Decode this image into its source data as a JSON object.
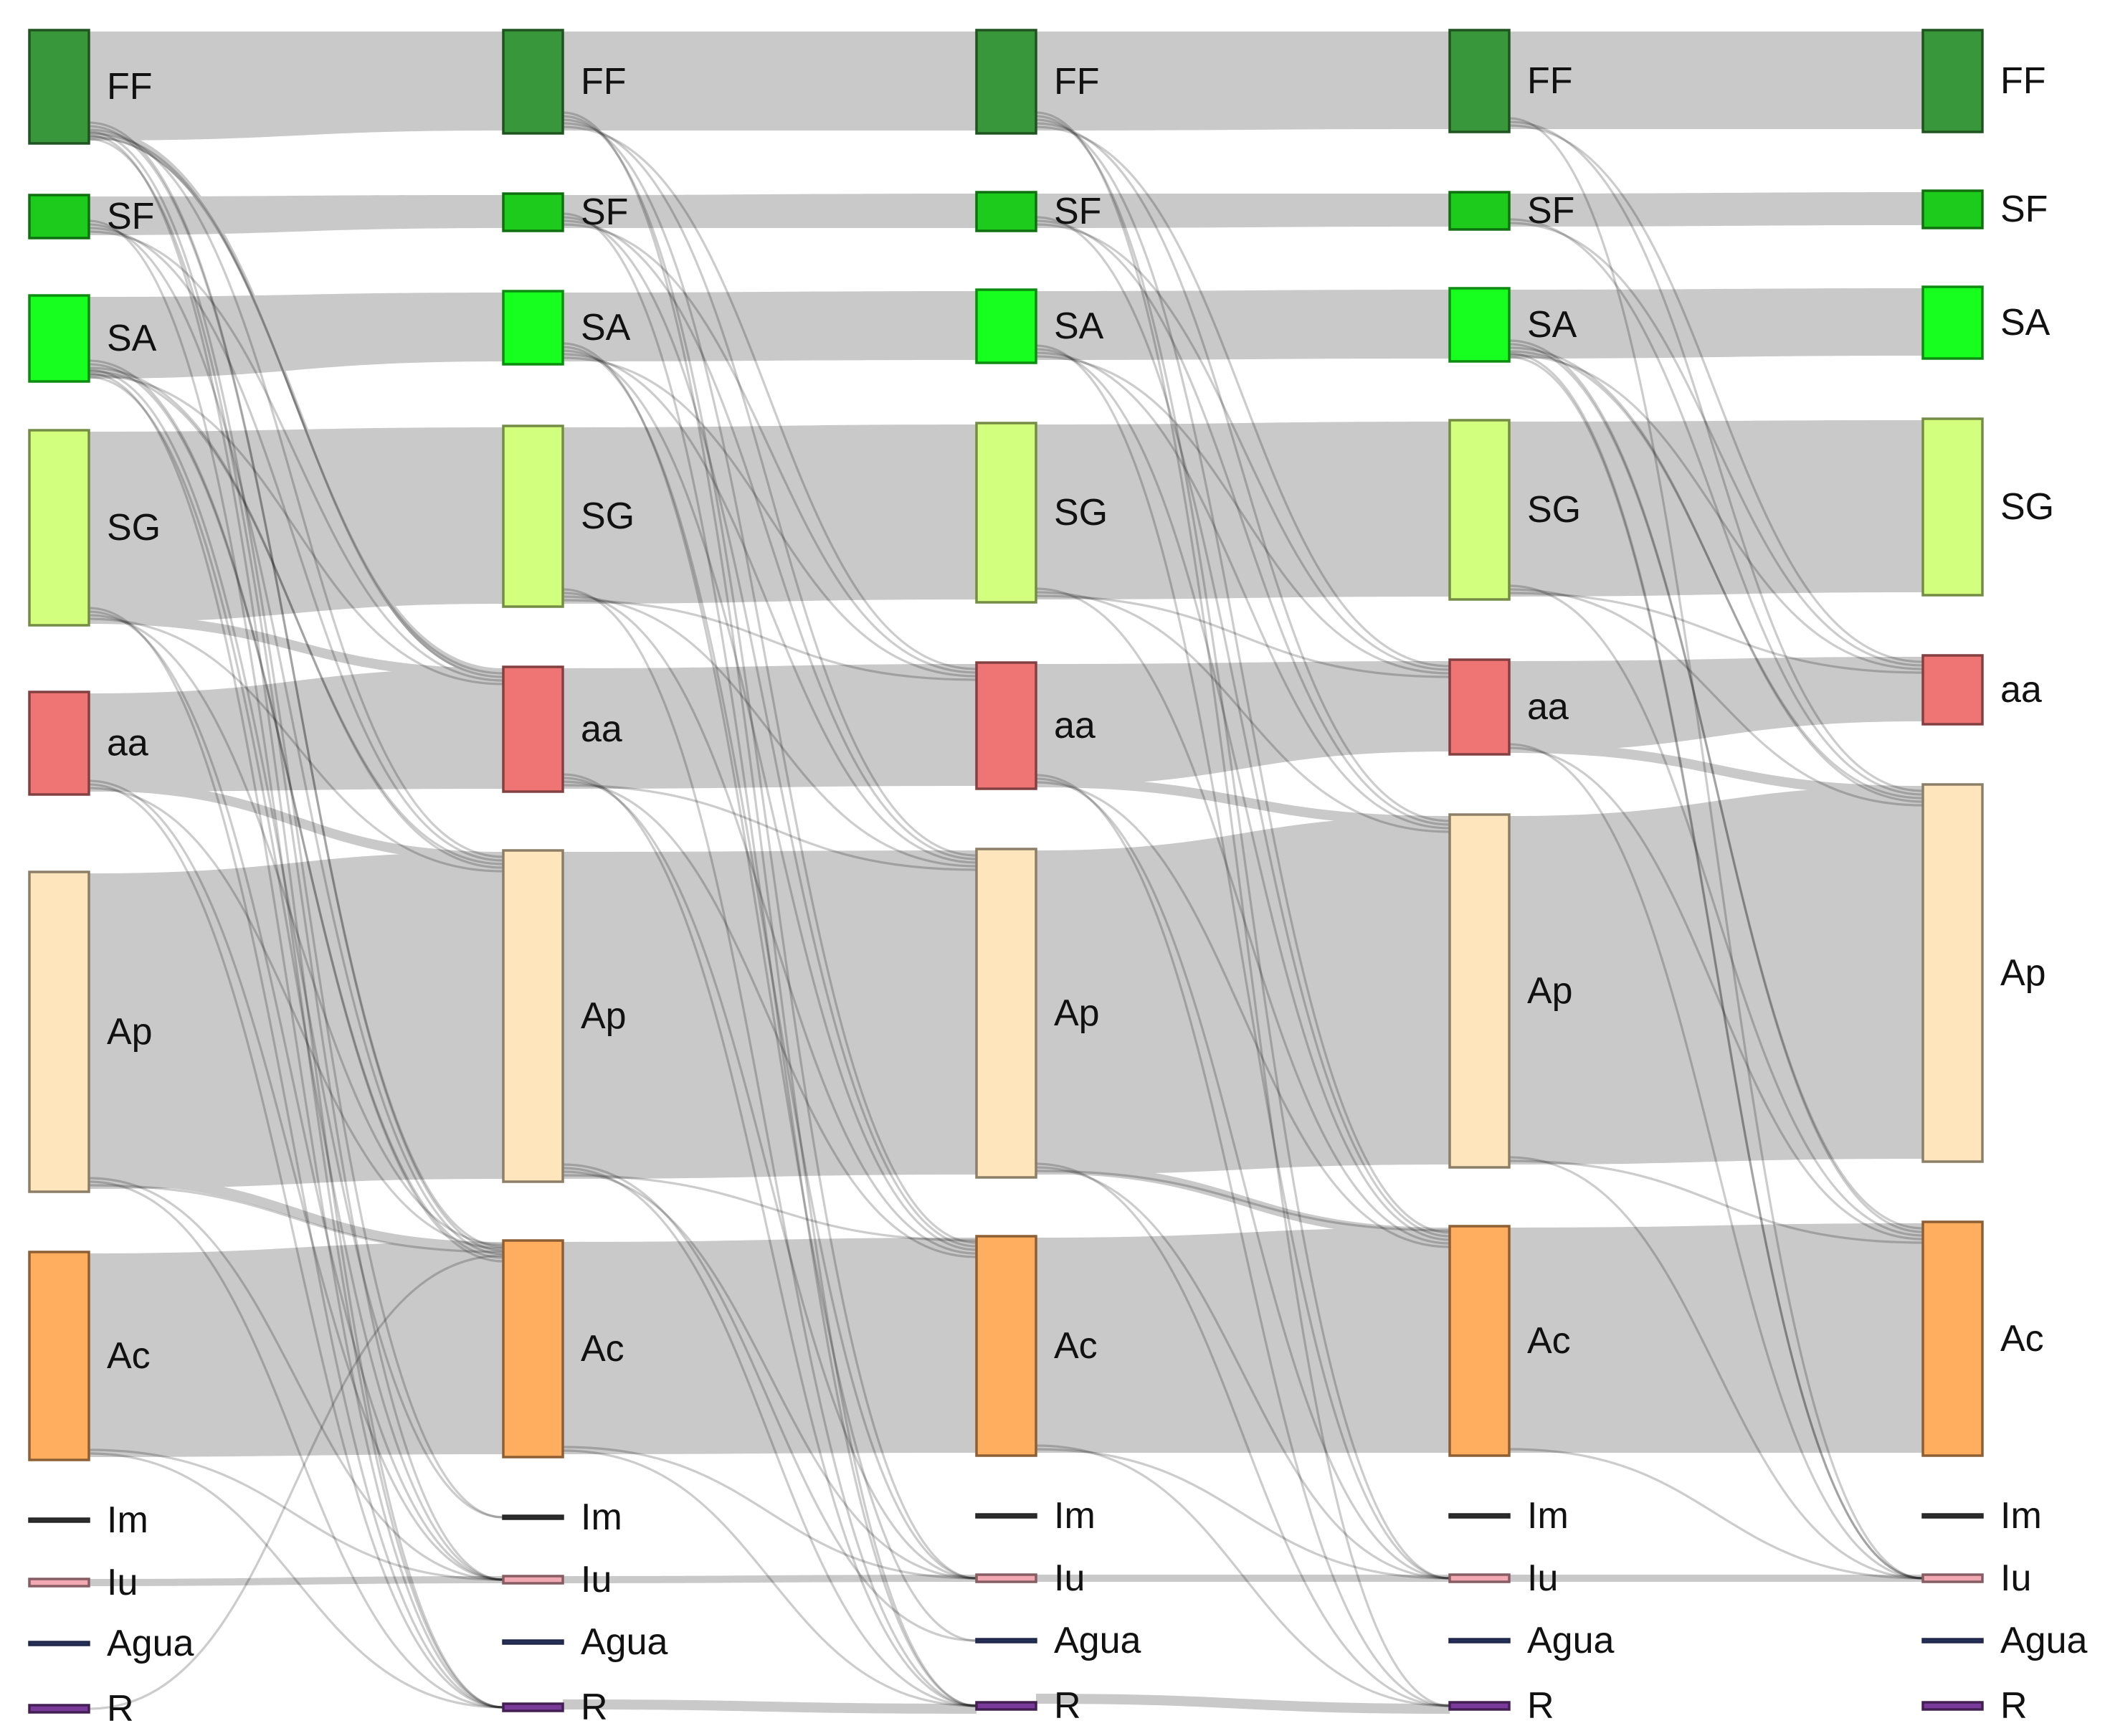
{
  "diagram": {
    "type": "sankey",
    "columns": 5,
    "categories": [
      {
        "id": "FF",
        "label": "FF",
        "color": "#38973a"
      },
      {
        "id": "SF",
        "label": "SF",
        "color": "#1dcb1d"
      },
      {
        "id": "SA",
        "label": "SA",
        "color": "#17ff1f"
      },
      {
        "id": "SG",
        "label": "SG",
        "color": "#d2ff7d"
      },
      {
        "id": "aa",
        "label": "aa",
        "color": "#ef7575"
      },
      {
        "id": "Ap",
        "label": "Ap",
        "color": "#fee5bc"
      },
      {
        "id": "Ac",
        "label": "Ac",
        "color": "#ffad5f"
      },
      {
        "id": "Im",
        "label": "Im",
        "color": "#474747"
      },
      {
        "id": "Iu",
        "label": "Iu",
        "color": "#f3a9b4"
      },
      {
        "id": "Agua",
        "label": "Agua",
        "color": "#3b4a8a"
      },
      {
        "id": "R",
        "label": "R",
        "color": "#7a3a99"
      }
    ],
    "band_color": "#c9c9c9",
    "thin_link_color": "#000000",
    "flows": [
      {
        "from": 0,
        "to": 1,
        "major": [
          "FF",
          "SF",
          "SA",
          "SG",
          "aa",
          "Ap",
          "Ac",
          "Iu"
        ],
        "minor": [
          [
            "SG",
            "aa"
          ],
          [
            "aa",
            "Ap"
          ],
          [
            "FF",
            "aa"
          ],
          [
            "Ap",
            "Ac"
          ]
        ]
      },
      {
        "from": 1,
        "to": 2,
        "major": [
          "FF",
          "SF",
          "SA",
          "SG",
          "aa",
          "Ap",
          "Ac",
          "Iu"
        ],
        "minor": [
          [
            "R",
            "R"
          ]
        ]
      },
      {
        "from": 2,
        "to": 3,
        "major": [
          "FF",
          "SF",
          "SA",
          "SG",
          "aa",
          "Ap",
          "Ac",
          "Iu"
        ],
        "minor": [
          [
            "aa",
            "Ap"
          ],
          [
            "Ap",
            "Ac"
          ],
          [
            "R",
            "R"
          ]
        ]
      },
      {
        "from": 3,
        "to": 4,
        "major": [
          "FF",
          "SF",
          "SA",
          "SG",
          "aa",
          "Ap",
          "Ac",
          "Iu"
        ],
        "minor": [
          [
            "aa",
            "Ap"
          ]
        ]
      }
    ],
    "thin_links": [
      [
        0,
        "FF",
        "aa"
      ],
      [
        0,
        "FF",
        "aa"
      ],
      [
        0,
        "FF",
        "Ap"
      ],
      [
        0,
        "FF",
        "Ac"
      ],
      [
        0,
        "FF",
        "Ac"
      ],
      [
        0,
        "FF",
        "Iu"
      ],
      [
        0,
        "FF",
        "R"
      ],
      [
        0,
        "FF",
        "Im"
      ],
      [
        0,
        "SF",
        "aa"
      ],
      [
        0,
        "SF",
        "Ap"
      ],
      [
        0,
        "SF",
        "Ac"
      ],
      [
        0,
        "SF",
        "R"
      ],
      [
        0,
        "SA",
        "aa"
      ],
      [
        0,
        "SA",
        "Ap"
      ],
      [
        0,
        "SA",
        "Ap"
      ],
      [
        0,
        "SA",
        "Ac"
      ],
      [
        0,
        "SA",
        "Ac"
      ],
      [
        0,
        "SA",
        "Iu"
      ],
      [
        0,
        "SA",
        "R"
      ],
      [
        0,
        "SA",
        "Im"
      ],
      [
        0,
        "SG",
        "Ap"
      ],
      [
        0,
        "SG",
        "Ac"
      ],
      [
        0,
        "SG",
        "Iu"
      ],
      [
        0,
        "SG",
        "R"
      ],
      [
        0,
        "aa",
        "Ac"
      ],
      [
        0,
        "aa",
        "R"
      ],
      [
        0,
        "aa",
        "Iu"
      ],
      [
        0,
        "Ap",
        "Ac"
      ],
      [
        0,
        "Ap",
        "R"
      ],
      [
        0,
        "Ap",
        "Iu"
      ],
      [
        0,
        "Ac",
        "R"
      ],
      [
        0,
        "Ac",
        "Iu"
      ],
      [
        0,
        "R",
        "Ac"
      ],
      [
        1,
        "FF",
        "aa"
      ],
      [
        1,
        "FF",
        "Ap"
      ],
      [
        1,
        "FF",
        "Ac"
      ],
      [
        1,
        "FF",
        "Iu"
      ],
      [
        1,
        "FF",
        "R"
      ],
      [
        1,
        "SF",
        "aa"
      ],
      [
        1,
        "SF",
        "Ap"
      ],
      [
        1,
        "SF",
        "Ac"
      ],
      [
        1,
        "SF",
        "R"
      ],
      [
        1,
        "SA",
        "aa"
      ],
      [
        1,
        "SA",
        "Ap"
      ],
      [
        1,
        "SA",
        "Ac"
      ],
      [
        1,
        "SA",
        "Iu"
      ],
      [
        1,
        "SA",
        "Agua"
      ],
      [
        1,
        "SG",
        "aa"
      ],
      [
        1,
        "SG",
        "Ap"
      ],
      [
        1,
        "SG",
        "Ac"
      ],
      [
        1,
        "SG",
        "R"
      ],
      [
        1,
        "aa",
        "Ap"
      ],
      [
        1,
        "aa",
        "Ac"
      ],
      [
        1,
        "aa",
        "Iu"
      ],
      [
        1,
        "aa",
        "R"
      ],
      [
        1,
        "Ap",
        "Ac"
      ],
      [
        1,
        "Ap",
        "Iu"
      ],
      [
        1,
        "Ap",
        "R"
      ],
      [
        1,
        "Ap",
        "Agua"
      ],
      [
        1,
        "Ac",
        "R"
      ],
      [
        1,
        "Ac",
        "Iu"
      ],
      [
        2,
        "FF",
        "aa"
      ],
      [
        2,
        "FF",
        "Ap"
      ],
      [
        2,
        "FF",
        "Ac"
      ],
      [
        2,
        "FF",
        "Iu"
      ],
      [
        2,
        "FF",
        "R"
      ],
      [
        2,
        "SF",
        "aa"
      ],
      [
        2,
        "SF",
        "Ap"
      ],
      [
        2,
        "SF",
        "Ac"
      ],
      [
        2,
        "SA",
        "aa"
      ],
      [
        2,
        "SA",
        "Ap"
      ],
      [
        2,
        "SA",
        "Ac"
      ],
      [
        2,
        "SA",
        "Iu"
      ],
      [
        2,
        "SG",
        "aa"
      ],
      [
        2,
        "SG",
        "Ap"
      ],
      [
        2,
        "SG",
        "Ac"
      ],
      [
        2,
        "aa",
        "Ac"
      ],
      [
        2,
        "aa",
        "Iu"
      ],
      [
        2,
        "aa",
        "R"
      ],
      [
        2,
        "Ap",
        "Ac"
      ],
      [
        2,
        "Ap",
        "Iu"
      ],
      [
        2,
        "Ap",
        "R"
      ],
      [
        2,
        "Ac",
        "Iu"
      ],
      [
        2,
        "Ac",
        "R"
      ],
      [
        3,
        "FF",
        "aa"
      ],
      [
        3,
        "FF",
        "Ap"
      ],
      [
        3,
        "FF",
        "Iu"
      ],
      [
        3,
        "SF",
        "aa"
      ],
      [
        3,
        "SF",
        "Ap"
      ],
      [
        3,
        "SA",
        "aa"
      ],
      [
        3,
        "SA",
        "Ap"
      ],
      [
        3,
        "SA",
        "Ap"
      ],
      [
        3,
        "SA",
        "Ac"
      ],
      [
        3,
        "SA",
        "Ac"
      ],
      [
        3,
        "SA",
        "Iu"
      ],
      [
        3,
        "SA",
        "Iu"
      ],
      [
        3,
        "SG",
        "aa"
      ],
      [
        3,
        "SG",
        "Ap"
      ],
      [
        3,
        "SG",
        "Ac"
      ],
      [
        3,
        "aa",
        "Ac"
      ],
      [
        3,
        "aa",
        "Iu"
      ],
      [
        3,
        "Ap",
        "Ac"
      ],
      [
        3,
        "Ap",
        "Iu"
      ],
      [
        3,
        "Ac",
        "Iu"
      ]
    ]
  }
}
